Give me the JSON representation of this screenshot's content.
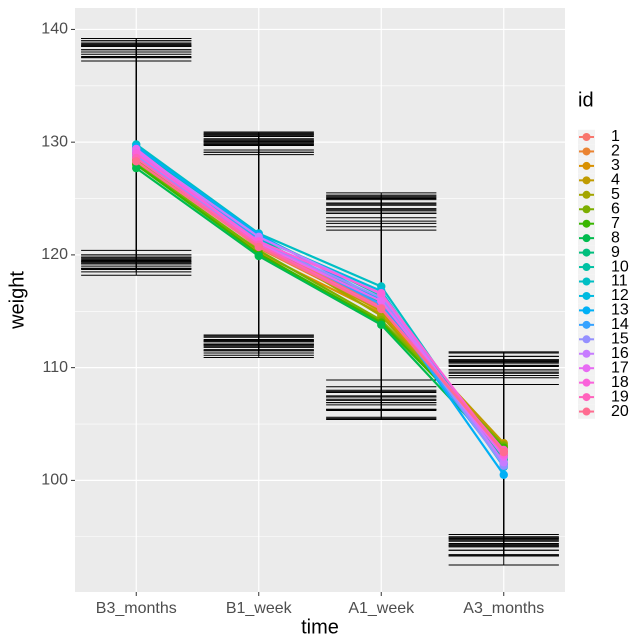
{
  "chart_data": {
    "type": "line",
    "x_label": "time",
    "y_label": "weight",
    "legend_title": "id",
    "categories": [
      "B3_months",
      "B1_week",
      "A1_week",
      "A3_months"
    ],
    "ylim": [
      90.1,
      141.9
    ],
    "yticks": [
      100,
      110,
      120,
      130,
      140
    ],
    "minor_yticks": [
      95,
      105,
      115,
      125,
      135
    ],
    "grid": true,
    "legend": "right",
    "series": [
      {
        "name": "1",
        "color": "#F8766D",
        "values": [
          128.5,
          121.0,
          115.5,
          102.4
        ],
        "errors": [
          9.5,
          9.0,
          8.6,
          8.1
        ]
      },
      {
        "name": "2",
        "color": "#EA8331",
        "values": [
          128.9,
          120.6,
          115.1,
          103.0
        ],
        "errors": [
          9.6,
          9.1,
          8.8,
          8.0
        ]
      },
      {
        "name": "3",
        "color": "#D89000",
        "values": [
          128.2,
          120.2,
          114.8,
          102.8
        ],
        "errors": [
          9.4,
          8.9,
          8.5,
          7.9
        ]
      },
      {
        "name": "4",
        "color": "#C09B00",
        "values": [
          128.7,
          120.8,
          115.0,
          103.3
        ],
        "errors": [
          9.5,
          9.0,
          8.7,
          8.1
        ]
      },
      {
        "name": "5",
        "color": "#A3A500",
        "values": [
          128.4,
          121.2,
          114.6,
          102.6
        ],
        "errors": [
          9.6,
          9.1,
          8.4,
          8.0
        ]
      },
      {
        "name": "6",
        "color": "#7CAE00",
        "values": [
          128.1,
          120.4,
          114.2,
          103.1
        ],
        "errors": [
          9.4,
          8.9,
          8.6,
          8.2
        ]
      },
      {
        "name": "7",
        "color": "#39B600",
        "values": [
          128.0,
          120.1,
          114.0,
          102.9
        ],
        "errors": [
          9.5,
          9.0,
          8.5,
          8.1
        ]
      },
      {
        "name": "8",
        "color": "#00BB4E",
        "values": [
          127.7,
          119.9,
          113.8,
          102.2
        ],
        "errors": [
          9.5,
          9.0,
          8.4,
          8.0
        ]
      },
      {
        "name": "9",
        "color": "#00BF7D",
        "values": [
          129.0,
          121.4,
          115.8,
          102.0
        ],
        "errors": [
          9.6,
          9.1,
          8.7,
          8.2
        ]
      },
      {
        "name": "10",
        "color": "#00C1A3",
        "values": [
          129.5,
          121.7,
          116.4,
          101.8
        ],
        "errors": [
          9.5,
          9.0,
          8.6,
          8.0
        ]
      },
      {
        "name": "11",
        "color": "#00BFC4",
        "values": [
          129.8,
          121.9,
          117.2,
          101.5
        ],
        "errors": [
          9.4,
          9.0,
          8.3,
          8.1
        ]
      },
      {
        "name": "12",
        "color": "#00BAE0",
        "values": [
          129.3,
          121.5,
          116.8,
          101.2
        ],
        "errors": [
          9.5,
          9.1,
          8.5,
          7.9
        ]
      },
      {
        "name": "13",
        "color": "#00B0F6",
        "values": [
          129.6,
          121.8,
          116.0,
          100.5
        ],
        "errors": [
          9.6,
          9.0,
          8.6,
          8.0
        ]
      },
      {
        "name": "14",
        "color": "#35A2FF",
        "values": [
          129.1,
          121.3,
          115.6,
          101.4
        ],
        "errors": [
          9.5,
          8.9,
          8.4,
          8.1
        ]
      },
      {
        "name": "15",
        "color": "#9590FF",
        "values": [
          128.8,
          121.1,
          116.2,
          101.3
        ],
        "errors": [
          9.4,
          9.0,
          8.7,
          8.0
        ]
      },
      {
        "name": "16",
        "color": "#C77CFF",
        "values": [
          129.2,
          121.6,
          116.5,
          101.6
        ],
        "errors": [
          9.5,
          9.1,
          8.6,
          8.2
        ]
      },
      {
        "name": "17",
        "color": "#E76BF3",
        "values": [
          129.4,
          121.0,
          115.9,
          102.1
        ],
        "errors": [
          9.6,
          9.0,
          8.5,
          8.0
        ]
      },
      {
        "name": "18",
        "color": "#FA62DB",
        "values": [
          129.0,
          121.2,
          116.6,
          102.3
        ],
        "errors": [
          9.5,
          8.9,
          8.6,
          8.1
        ]
      },
      {
        "name": "19",
        "color": "#FF62BC",
        "values": [
          128.6,
          120.9,
          115.3,
          102.7
        ],
        "errors": [
          9.4,
          9.0,
          8.4,
          8.0
        ]
      },
      {
        "name": "20",
        "color": "#FF6C91",
        "values": [
          128.3,
          120.7,
          115.2,
          102.5
        ],
        "errors": [
          9.5,
          9.1,
          8.5,
          8.1
        ]
      }
    ]
  }
}
